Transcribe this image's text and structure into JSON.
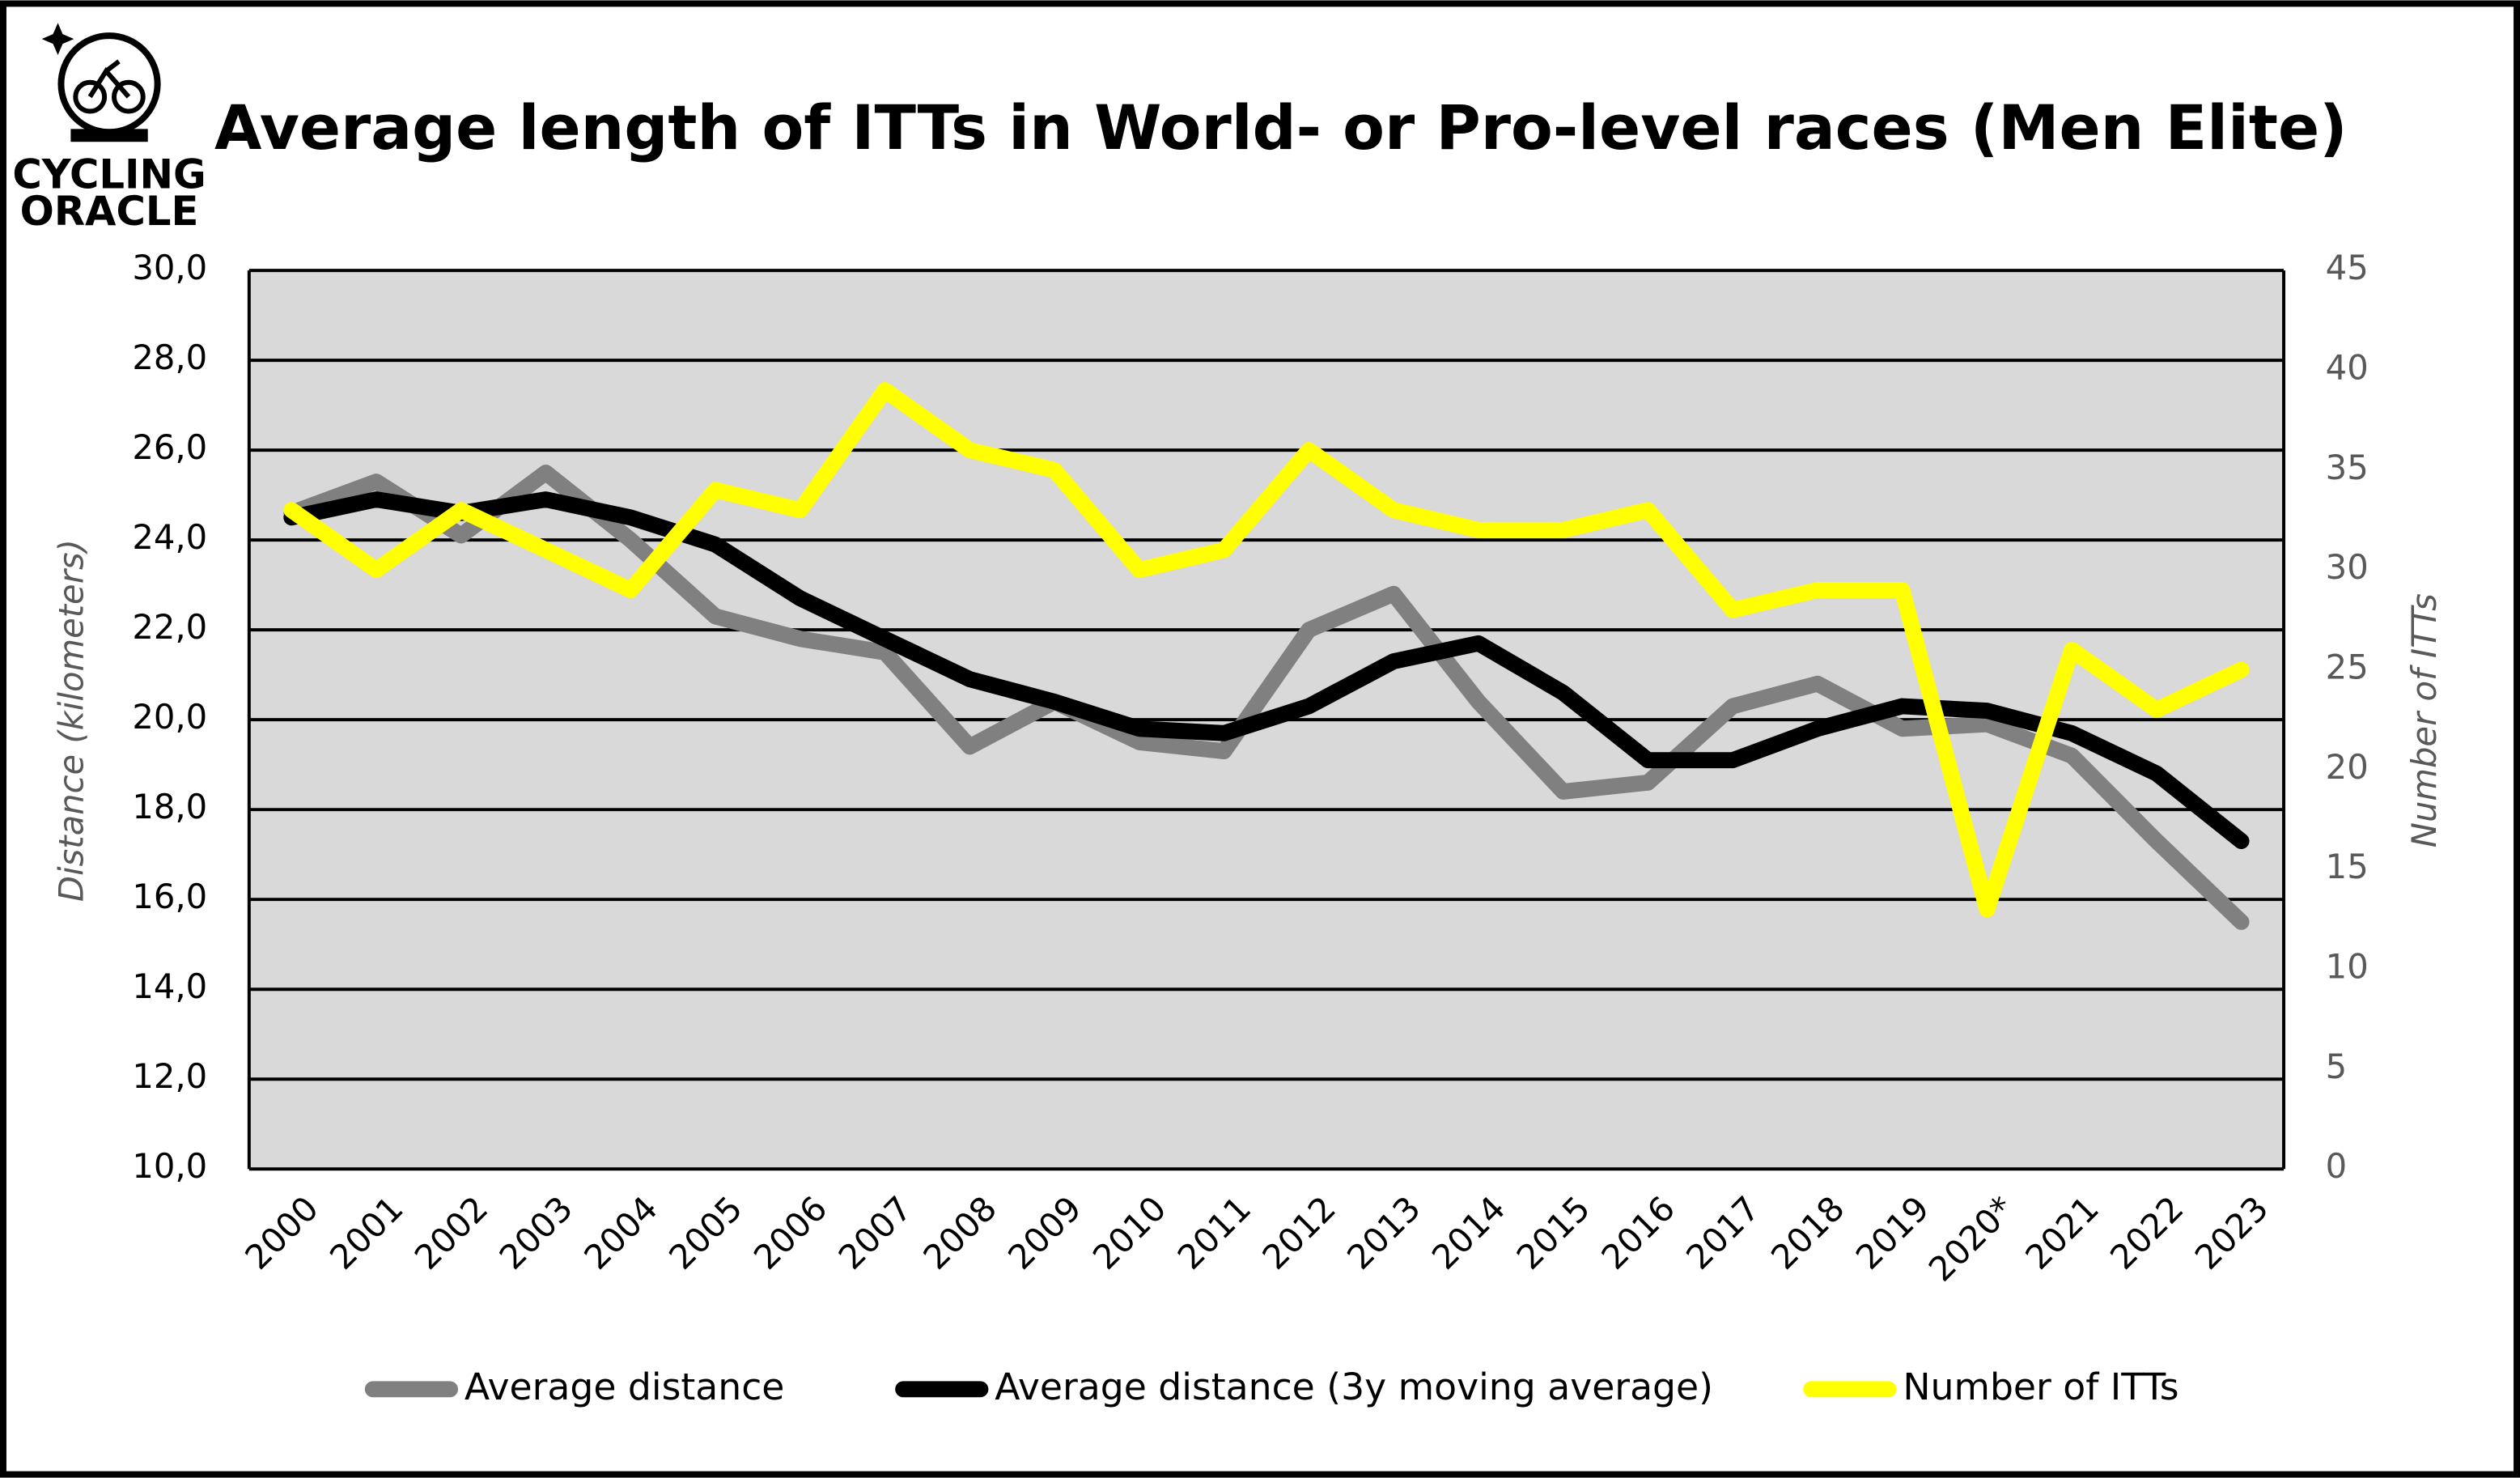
{
  "logo_text": [
    "CYCLING",
    "ORACLE"
  ],
  "chart_data": {
    "type": "line",
    "title": "Average length of ITTs in World- or Pro-level races (Men Elite)",
    "y_label": "Distance (kilometers)",
    "y2_label": "Number of ITTs",
    "categories": [
      "2000",
      "2001",
      "2002",
      "2003",
      "2004",
      "2005",
      "2006",
      "2007",
      "2008",
      "2009",
      "2010",
      "2011",
      "2012",
      "2013",
      "2014",
      "2015",
      "2016",
      "2017",
      "2018",
      "2019",
      "2020*",
      "2021",
      "2022",
      "2023"
    ],
    "series": [
      {
        "name": "Average distance",
        "color": "#808080",
        "axis": "y",
        "values": [
          24.6,
          25.3,
          24.1,
          25.5,
          24.0,
          22.3,
          21.8,
          21.5,
          19.4,
          20.4,
          19.5,
          19.3,
          22.0,
          22.8,
          20.4,
          18.4,
          18.6,
          20.3,
          20.8,
          19.8,
          19.9,
          19.2,
          17.3,
          15.5
        ]
      },
      {
        "name": "Average distance (3y moving average)",
        "color": "#000000",
        "axis": "y",
        "values": [
          24.5,
          24.9,
          24.6,
          24.9,
          24.5,
          23.9,
          22.7,
          21.8,
          20.9,
          20.4,
          19.8,
          19.7,
          20.3,
          21.3,
          21.7,
          20.6,
          19.1,
          19.1,
          19.8,
          20.3,
          20.2,
          19.7,
          18.8,
          17.3
        ]
      },
      {
        "name": "Number of ITTs",
        "color": "#ffff00",
        "axis": "y2",
        "values": [
          33,
          30,
          33,
          31,
          29,
          34,
          33,
          39,
          36,
          35,
          30,
          31,
          36,
          33,
          32,
          32,
          33,
          28,
          29,
          29,
          13,
          26,
          23,
          25
        ]
      }
    ],
    "ylim": [
      10,
      30
    ],
    "yticks": [
      {
        "value": 10,
        "label": "10,0"
      },
      {
        "value": 12,
        "label": "12,0"
      },
      {
        "value": 14,
        "label": "14,0"
      },
      {
        "value": 16,
        "label": "16,0"
      },
      {
        "value": 18,
        "label": "18,0"
      },
      {
        "value": 20,
        "label": "20,0"
      },
      {
        "value": 22,
        "label": "22,0"
      },
      {
        "value": 24,
        "label": "24,0"
      },
      {
        "value": 26,
        "label": "26,0"
      },
      {
        "value": 28,
        "label": "28,0"
      },
      {
        "value": 30,
        "label": "30,0"
      }
    ],
    "y2lim": [
      0,
      45
    ],
    "y2ticks": [
      0,
      5,
      10,
      15,
      20,
      25,
      30,
      35,
      40,
      45
    ],
    "grid": true,
    "legend": "bottom"
  }
}
